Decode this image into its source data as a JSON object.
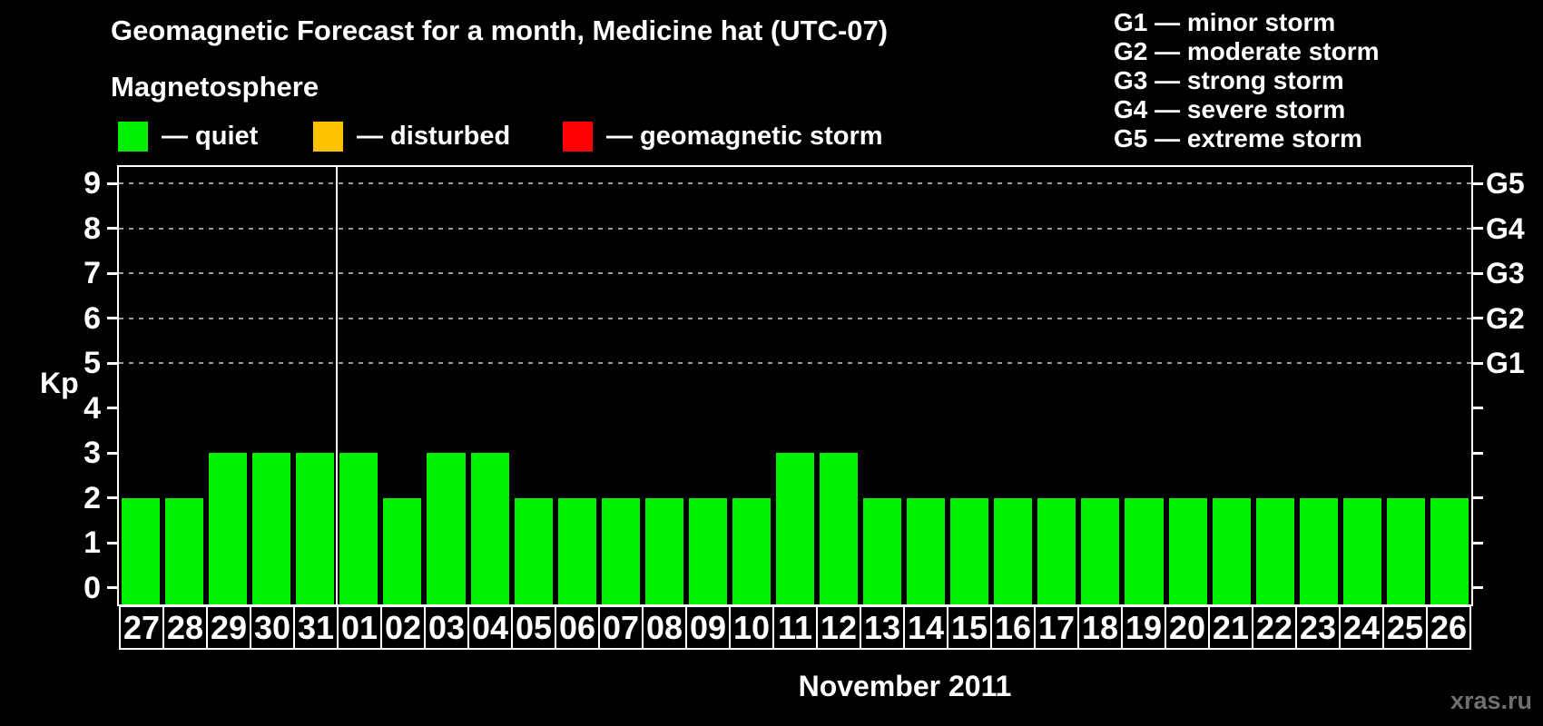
{
  "header": {
    "title": "Geomagnetic Forecast for a month, Medicine hat (UTC-07)"
  },
  "legend": {
    "heading": "Magnetosphere",
    "items": [
      {
        "label": "— quiet",
        "color": "#00ee00"
      },
      {
        "label": "— disturbed",
        "color": "#ffc000"
      },
      {
        "label": "— geomagnetic storm",
        "color": "#ff0000"
      }
    ]
  },
  "g_scale_legend": [
    "G1 — minor storm",
    "G2 — moderate storm",
    "G3 — strong storm",
    "G4 — severe storm",
    "G5 — extreme storm"
  ],
  "chart_data": {
    "type": "bar",
    "title": "Geomagnetic Forecast for a month, Medicine hat (UTC-07)",
    "ylabel": "Kp",
    "xlabel": "November 2011",
    "categories": [
      "27",
      "28",
      "29",
      "30",
      "31",
      "01",
      "02",
      "03",
      "04",
      "05",
      "06",
      "07",
      "08",
      "09",
      "10",
      "11",
      "12",
      "13",
      "14",
      "15",
      "16",
      "17",
      "18",
      "19",
      "20",
      "21",
      "22",
      "23",
      "24",
      "25",
      "26"
    ],
    "values": [
      2,
      2,
      3,
      3,
      3,
      3,
      2,
      3,
      3,
      2,
      2,
      2,
      2,
      2,
      2,
      3,
      3,
      2,
      2,
      2,
      2,
      2,
      2,
      2,
      2,
      2,
      2,
      2,
      2,
      2,
      2
    ],
    "ylim": [
      -0.37,
      9.37
    ],
    "yticks": [
      0,
      1,
      2,
      3,
      4,
      5,
      6,
      7,
      8,
      9
    ],
    "grid_kp": [
      5,
      6,
      7,
      8,
      9
    ],
    "grid": true,
    "right_axis": [
      {
        "kp": 5,
        "label": "G1"
      },
      {
        "kp": 6,
        "label": "G2"
      },
      {
        "kp": 7,
        "label": "G3"
      },
      {
        "kp": 8,
        "label": "G4"
      },
      {
        "kp": 9,
        "label": "G5"
      }
    ],
    "month_separator_after_index": 4,
    "level_colors": {
      "quiet": "#00ee00",
      "disturbed": "#ffc000",
      "storm": "#ff0000"
    },
    "level_thresholds": {
      "disturbed_min": 4,
      "storm_min": 5
    },
    "legend_position": "top-left"
  },
  "footer": {
    "caption": "November 2011",
    "watermark": "xras.ru",
    "watermark_color": "#6f6f6f"
  }
}
